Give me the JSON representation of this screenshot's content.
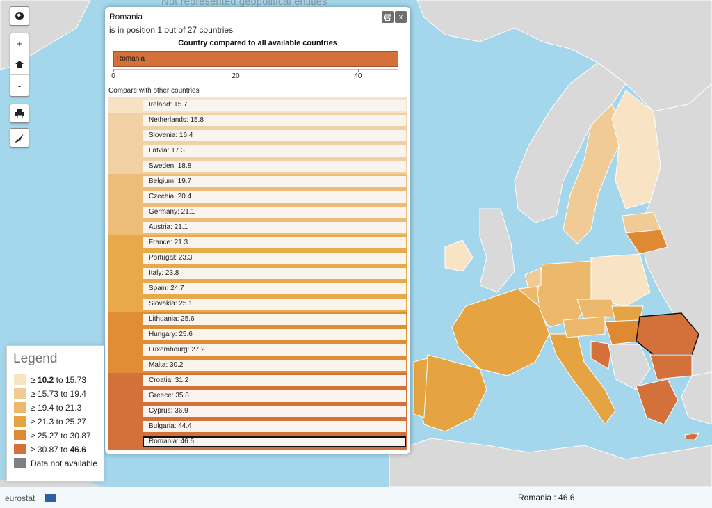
{
  "map": {
    "top_note": "Not represented geopolitical entities"
  },
  "toolbar": {
    "globe_icon": "globe-icon",
    "zoom_in": "+",
    "home_icon": "home-icon",
    "zoom_out": "-",
    "print_icon": "print-icon",
    "brush_icon": "brush-icon"
  },
  "panel": {
    "country": "Romania",
    "position_text": "is in position 1 out of 27 countries",
    "print_icon": "print-icon",
    "close_label": "x",
    "heading": "Country compared to all available countries",
    "bar_label": "Romania",
    "bar_value": 46.6,
    "axis_ticks": [
      "0",
      "20",
      "40"
    ],
    "compare_label": "Compare with other countries",
    "rows": [
      {
        "label": "Ireland: 15.7",
        "value": 15.7,
        "class": 0
      },
      {
        "label": "Netherlands: 15.8",
        "value": 15.8,
        "class": 1
      },
      {
        "label": "Slovenia: 16.4",
        "value": 16.4,
        "class": 1
      },
      {
        "label": "Latvia: 17.3",
        "value": 17.3,
        "class": 1
      },
      {
        "label": "Sweden: 18.8",
        "value": 18.8,
        "class": 1
      },
      {
        "label": "Belgium: 19.7",
        "value": 19.7,
        "class": 2
      },
      {
        "label": "Czechia: 20.4",
        "value": 20.4,
        "class": 2
      },
      {
        "label": "Germany: 21.1",
        "value": 21.1,
        "class": 2
      },
      {
        "label": "Austria: 21.1",
        "value": 21.1,
        "class": 2
      },
      {
        "label": "France: 21.3",
        "value": 21.3,
        "class": 3
      },
      {
        "label": "Portugal: 23.3",
        "value": 23.3,
        "class": 3
      },
      {
        "label": "Italy: 23.8",
        "value": 23.8,
        "class": 3
      },
      {
        "label": "Spain: 24.7",
        "value": 24.7,
        "class": 3
      },
      {
        "label": "Slovakia: 25.1",
        "value": 25.1,
        "class": 3
      },
      {
        "label": "Lithuania: 25.6",
        "value": 25.6,
        "class": 4
      },
      {
        "label": "Hungary: 25.6",
        "value": 25.6,
        "class": 4
      },
      {
        "label": "Luxembourg: 27.2",
        "value": 27.2,
        "class": 4
      },
      {
        "label": "Malta: 30.2",
        "value": 30.2,
        "class": 4
      },
      {
        "label": "Croatia: 31.2",
        "value": 31.2,
        "class": 5
      },
      {
        "label": "Greece: 35.8",
        "value": 35.8,
        "class": 5
      },
      {
        "label": "Cyprus: 36.9",
        "value": 36.9,
        "class": 5
      },
      {
        "label": "Bulgaria: 44.4",
        "value": 44.4,
        "class": 5
      },
      {
        "label": "Romania: 46.6",
        "value": 46.6,
        "class": 5,
        "selected": true
      }
    ]
  },
  "legend": {
    "title": "Legend",
    "items": [
      {
        "pre": "≥ ",
        "bold1": "10.2",
        "mid": " to 15.73",
        "bold2": "",
        "color": "#f8e3c4"
      },
      {
        "pre": "≥ 15.73 to 19.4",
        "bold1": "",
        "mid": "",
        "bold2": "",
        "color": "#f0cb95"
      },
      {
        "pre": "≥ 19.4 to 21.3",
        "bold1": "",
        "mid": "",
        "bold2": "",
        "color": "#ecb86b"
      },
      {
        "pre": "≥ 21.3 to 25.27",
        "bold1": "",
        "mid": "",
        "bold2": "",
        "color": "#e5a441"
      },
      {
        "pre": "≥ 25.27 to 30.87",
        "bold1": "",
        "mid": "",
        "bold2": "",
        "color": "#de8a33"
      },
      {
        "pre": "≥ 30.87 to ",
        "bold1": "",
        "mid": "",
        "bold2": "46.6",
        "color": "#d4703a"
      },
      {
        "pre": "Data not available",
        "bold1": "",
        "mid": "",
        "bold2": "",
        "color": "#808080"
      }
    ]
  },
  "footer": {
    "brand": "eurostat",
    "status": "Romania : 46.6"
  },
  "colors": {
    "classes": [
      "#f8e3c4",
      "#f0cb95",
      "#ecb86b",
      "#e5a441",
      "#de8a33",
      "#d4703a"
    ],
    "bar_fills": [
      "#f7e2c6",
      "#f1d0a4",
      "#edbc76",
      "#e7a94a",
      "#df8e36",
      "#d4703a"
    ],
    "sea": "#a5d7ec",
    "land_other": "#d9d9d9"
  }
}
